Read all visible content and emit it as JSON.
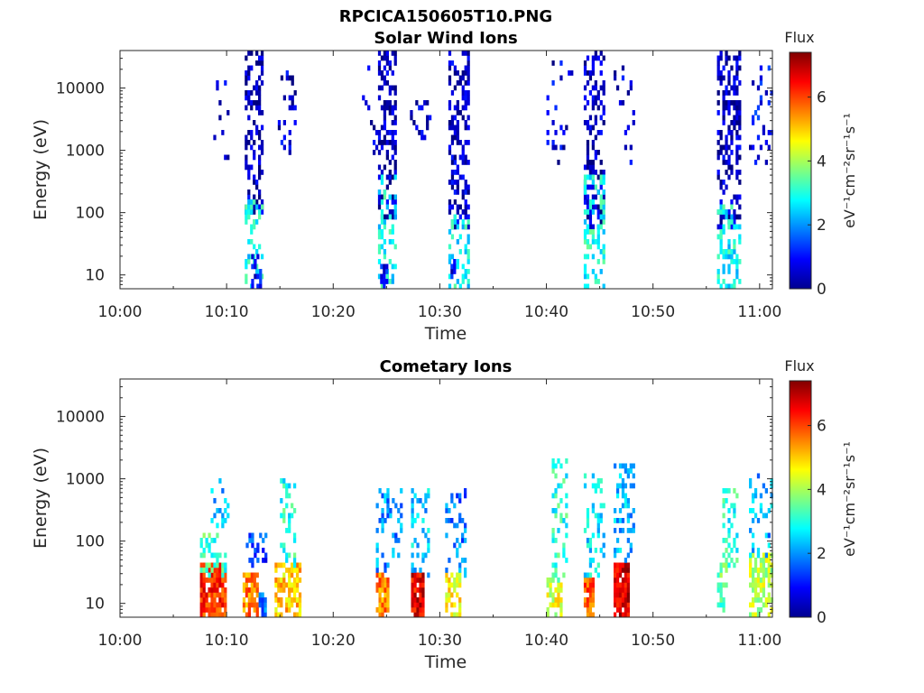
{
  "figure_title": "RPCICA150605T10.PNG",
  "colorbar": {
    "title": "Flux",
    "label": "eV⁻¹cm⁻²sr⁻¹s⁻¹",
    "ticks": [
      "0",
      "2",
      "4",
      "6"
    ],
    "range": [
      0,
      7.4
    ],
    "colormap": "jet"
  },
  "chart_data": [
    {
      "type": "heatmap",
      "title": "Solar Wind Ions",
      "xlabel": "Time",
      "ylabel": "Energy (eV)",
      "x_ticks": [
        "10:00",
        "10:10",
        "10:20",
        "10:30",
        "10:40",
        "10:50",
        "11:00"
      ],
      "y_ticks": [
        "10",
        "100",
        "1000",
        "10000"
      ],
      "y_scale": "log",
      "x_range_minutes": [
        0,
        61.2
      ],
      "y_range": [
        6,
        40000
      ],
      "color_range": [
        0,
        7.4
      ],
      "bursts": [
        {
          "start_min": 8.5,
          "end_min": 10.2,
          "emin": 800,
          "emax": 12000,
          "flux": 0.5,
          "density": 0.12
        },
        {
          "start_min": 11.7,
          "end_min": 13.3,
          "emin": 100,
          "emax": 38000,
          "flux": 0.4,
          "density": 0.45
        },
        {
          "start_min": 11.7,
          "end_min": 13.3,
          "emin": 6,
          "emax": 150,
          "flux": 2.8,
          "density": 0.35
        },
        {
          "start_min": 12.3,
          "end_min": 13.1,
          "emin": 6,
          "emax": 20,
          "flux": 0.9,
          "density": 0.5
        },
        {
          "start_min": 14.8,
          "end_min": 16.4,
          "emin": 900,
          "emax": 18000,
          "flux": 0.6,
          "density": 0.15
        },
        {
          "start_min": 22.7,
          "end_min": 24.0,
          "emin": 1000,
          "emax": 20000,
          "flux": 0.6,
          "density": 0.1
        },
        {
          "start_min": 24.2,
          "end_min": 25.8,
          "emin": 80,
          "emax": 36000,
          "flux": 0.4,
          "density": 0.45
        },
        {
          "start_min": 24.2,
          "end_min": 25.8,
          "emin": 6,
          "emax": 400,
          "flux": 2.8,
          "density": 0.35
        },
        {
          "start_min": 24.4,
          "end_min": 25.0,
          "emin": 6,
          "emax": 15,
          "flux": 0.8,
          "density": 0.6
        },
        {
          "start_min": 27.2,
          "end_min": 29.0,
          "emin": 1500,
          "emax": 6000,
          "flux": 0.6,
          "density": 0.18
        },
        {
          "start_min": 30.8,
          "end_min": 32.8,
          "emin": 60,
          "emax": 36000,
          "flux": 0.5,
          "density": 0.45
        },
        {
          "start_min": 30.8,
          "end_min": 32.8,
          "emin": 6,
          "emax": 100,
          "flux": 2.8,
          "density": 0.35
        },
        {
          "start_min": 31.0,
          "end_min": 31.4,
          "emin": 10,
          "emax": 16,
          "flux": 0.7,
          "density": 0.8
        },
        {
          "start_min": 40.0,
          "end_min": 42.5,
          "emin": 600,
          "emax": 25000,
          "flux": 0.6,
          "density": 0.1
        },
        {
          "start_min": 43.5,
          "end_min": 45.5,
          "emin": 60,
          "emax": 36000,
          "flux": 0.4,
          "density": 0.45
        },
        {
          "start_min": 43.5,
          "end_min": 45.5,
          "emin": 6,
          "emax": 400,
          "flux": 2.9,
          "density": 0.35
        },
        {
          "start_min": 46.3,
          "end_min": 48.2,
          "emin": 300,
          "emax": 25000,
          "flux": 0.6,
          "density": 0.12
        },
        {
          "start_min": 56.0,
          "end_min": 58.2,
          "emin": 60,
          "emax": 38000,
          "flux": 0.4,
          "density": 0.45
        },
        {
          "start_min": 56.0,
          "end_min": 58.2,
          "emin": 6,
          "emax": 120,
          "flux": 2.8,
          "density": 0.35
        },
        {
          "start_min": 59.0,
          "end_min": 61.2,
          "emin": 600,
          "emax": 20000,
          "flux": 0.9,
          "density": 0.15
        }
      ]
    },
    {
      "type": "heatmap",
      "title": "Cometary Ions",
      "xlabel": "Time",
      "ylabel": "Energy (eV)",
      "x_ticks": [
        "10:00",
        "10:10",
        "10:20",
        "10:30",
        "10:40",
        "10:50",
        "11:00"
      ],
      "y_ticks": [
        "10",
        "100",
        "1000",
        "10000"
      ],
      "y_scale": "log",
      "x_range_minutes": [
        0,
        61.2
      ],
      "y_range": [
        6,
        40000
      ],
      "color_range": [
        0,
        7.4
      ],
      "bursts": [
        {
          "start_min": 7.5,
          "end_min": 10.0,
          "emin": 6,
          "emax": 40,
          "flux": 6.2,
          "density": 0.85
        },
        {
          "start_min": 7.5,
          "end_min": 10.0,
          "emin": 30,
          "emax": 120,
          "flux": 3.2,
          "density": 0.4
        },
        {
          "start_min": 8.5,
          "end_min": 10.2,
          "emin": 150,
          "emax": 1000,
          "flux": 2.3,
          "density": 0.25
        },
        {
          "start_min": 11.5,
          "end_min": 12.8,
          "emin": 6,
          "emax": 30,
          "flux": 5.6,
          "density": 0.8
        },
        {
          "start_min": 11.8,
          "end_min": 13.8,
          "emin": 40,
          "emax": 130,
          "flux": 1.3,
          "density": 0.3
        },
        {
          "start_min": 13.0,
          "end_min": 13.6,
          "emin": 6,
          "emax": 14,
          "flux": 1.6,
          "density": 0.6
        },
        {
          "start_min": 14.5,
          "end_min": 16.8,
          "emin": 6,
          "emax": 40,
          "flux": 5.0,
          "density": 0.7
        },
        {
          "start_min": 15.0,
          "end_min": 16.5,
          "emin": 40,
          "emax": 1000,
          "flux": 3.0,
          "density": 0.3
        },
        {
          "start_min": 24.0,
          "end_min": 25.2,
          "emin": 6,
          "emax": 30,
          "flux": 5.6,
          "density": 0.85
        },
        {
          "start_min": 24.0,
          "end_min": 26.5,
          "emin": 30,
          "emax": 700,
          "flux": 2.0,
          "density": 0.25
        },
        {
          "start_min": 27.3,
          "end_min": 28.4,
          "emin": 6,
          "emax": 30,
          "flux": 6.6,
          "density": 0.85
        },
        {
          "start_min": 27.3,
          "end_min": 29.0,
          "emin": 30,
          "emax": 700,
          "flux": 2.4,
          "density": 0.3
        },
        {
          "start_min": 30.5,
          "end_min": 32.0,
          "emin": 6,
          "emax": 30,
          "flux": 4.6,
          "density": 0.75
        },
        {
          "start_min": 30.5,
          "end_min": 32.5,
          "emin": 30,
          "emax": 600,
          "flux": 1.8,
          "density": 0.25
        },
        {
          "start_min": 40.0,
          "end_min": 41.5,
          "emin": 6,
          "emax": 25,
          "flux": 4.4,
          "density": 0.6
        },
        {
          "start_min": 40.5,
          "end_min": 41.8,
          "emin": 25,
          "emax": 1800,
          "flux": 3.0,
          "density": 0.3
        },
        {
          "start_min": 43.5,
          "end_min": 44.5,
          "emin": 6,
          "emax": 30,
          "flux": 5.8,
          "density": 0.8
        },
        {
          "start_min": 43.5,
          "end_min": 45.5,
          "emin": 30,
          "emax": 1200,
          "flux": 2.6,
          "density": 0.3
        },
        {
          "start_min": 46.3,
          "end_min": 47.8,
          "emin": 6,
          "emax": 40,
          "flux": 6.8,
          "density": 0.9
        },
        {
          "start_min": 46.3,
          "end_min": 48.2,
          "emin": 40,
          "emax": 1500,
          "flux": 2.3,
          "density": 0.3
        },
        {
          "start_min": 56.0,
          "end_min": 57.0,
          "emin": 6,
          "emax": 40,
          "flux": 3.5,
          "density": 0.5
        },
        {
          "start_min": 56.5,
          "end_min": 58.0,
          "emin": 40,
          "emax": 700,
          "flux": 3.0,
          "density": 0.35
        },
        {
          "start_min": 59.0,
          "end_min": 61.2,
          "emin": 6,
          "emax": 60,
          "flux": 4.2,
          "density": 0.6
        },
        {
          "start_min": 59.0,
          "end_min": 61.2,
          "emin": 60,
          "emax": 1200,
          "flux": 2.2,
          "density": 0.3
        }
      ]
    }
  ]
}
